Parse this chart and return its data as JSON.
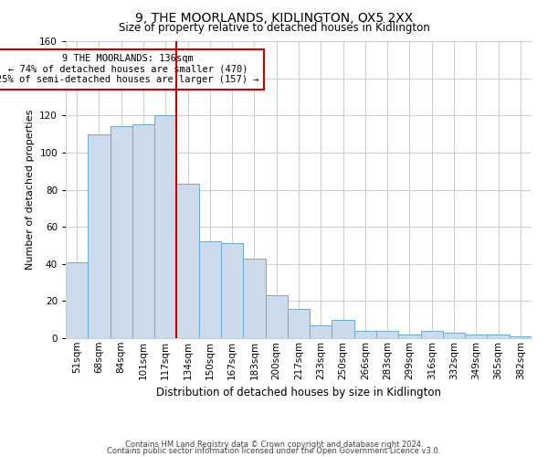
{
  "title": "9, THE MOORLANDS, KIDLINGTON, OX5 2XX",
  "subtitle": "Size of property relative to detached houses in Kidlington",
  "xlabel": "Distribution of detached houses by size in Kidlington",
  "ylabel": "Number of detached properties",
  "bar_labels": [
    "51sqm",
    "68sqm",
    "84sqm",
    "101sqm",
    "117sqm",
    "134sqm",
    "150sqm",
    "167sqm",
    "183sqm",
    "200sqm",
    "217sqm",
    "233sqm",
    "250sqm",
    "266sqm",
    "283sqm",
    "299sqm",
    "316sqm",
    "332sqm",
    "349sqm",
    "365sqm",
    "382sqm"
  ],
  "bar_values": [
    41,
    110,
    114,
    115,
    120,
    83,
    52,
    51,
    43,
    23,
    16,
    7,
    10,
    4,
    4,
    2,
    4,
    3,
    2,
    2,
    1
  ],
  "bar_color": "#ccdcec",
  "bar_edge_color": "#6aaad4",
  "highlight_index": 5,
  "highlight_color": "#cc0000",
  "annotation_line1": "9 THE MOORLANDS: 136sqm",
  "annotation_line2": "← 74% of detached houses are smaller (470)",
  "annotation_line3": "25% of semi-detached houses are larger (157) →",
  "annotation_box_color": "#ffffff",
  "annotation_box_edge": "#cc0000",
  "ylim": [
    0,
    160
  ],
  "yticks": [
    0,
    20,
    40,
    60,
    80,
    100,
    120,
    140,
    160
  ],
  "footer1": "Contains HM Land Registry data © Crown copyright and database right 2024.",
  "footer2": "Contains public sector information licensed under the Open Government Licence v3.0.",
  "background_color": "#ffffff",
  "grid_color": "#cccccc",
  "title_fontsize": 10,
  "subtitle_fontsize": 8.5,
  "ylabel_fontsize": 8,
  "xlabel_fontsize": 8.5,
  "tick_fontsize": 7.5,
  "footer_fontsize": 6
}
